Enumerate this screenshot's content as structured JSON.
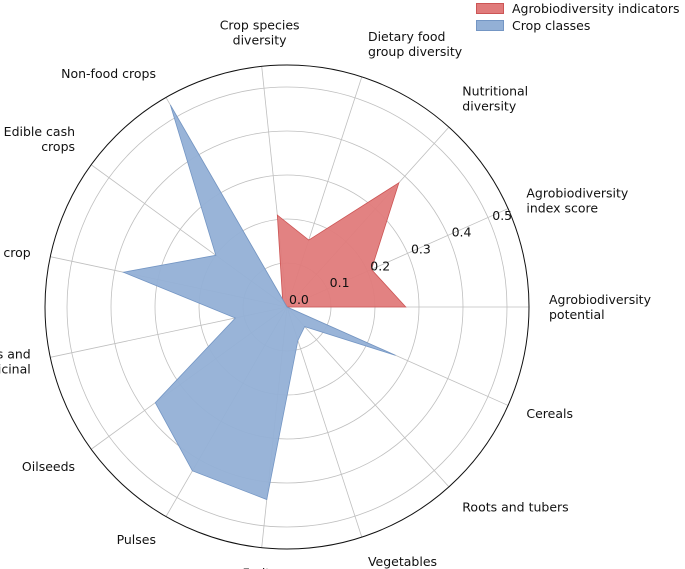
{
  "chart_data": {
    "type": "radar",
    "angle_order": "counter-clockwise from right",
    "r_max": 0.55,
    "r_ticks": [
      0.0,
      0.1,
      0.2,
      0.3,
      0.4,
      0.5
    ],
    "tick_labels": [
      "0.0",
      "0.1",
      "0.2",
      "0.3",
      "0.4",
      "0.5"
    ],
    "grid": true,
    "legend_placement": "top-right",
    "categories": [
      [
        "Agrobiodiversity",
        "potential"
      ],
      [
        "Agrobiodiversity",
        "index score"
      ],
      [
        "Nutritional",
        "diversity"
      ],
      [
        "Dietary food",
        "group diversity"
      ],
      [
        "Crop species",
        "diversity"
      ],
      [
        "Non-food crops"
      ],
      [
        "Edible cash",
        "crops"
      ],
      [
        "Sugar crop"
      ],
      [
        "Spices and",
        "medicinal"
      ],
      [
        "Oilseeds"
      ],
      [
        "Pulses"
      ],
      [
        "Fruits"
      ],
      [
        "Vegetables"
      ],
      [
        "Roots and tubers"
      ],
      [
        "Cereals"
      ]
    ],
    "series": [
      {
        "name": "Agrobiodiversity indicators",
        "color": "#e07b7b",
        "edge": "#cc5555",
        "values": [
          0.27,
          0.21,
          0.38,
          0.16,
          0.21,
          0.02,
          0.0,
          0.0,
          0.0,
          0.0,
          0.0,
          0.0,
          0.0,
          0.0,
          0.0
        ]
      },
      {
        "name": "Crop classes",
        "color": "#93b0d6",
        "edge": "#7496c4",
        "values": [
          0.0,
          0.0,
          0.0,
          0.0,
          0.0,
          0.53,
          0.2,
          0.38,
          0.12,
          0.37,
          0.43,
          0.44,
          0.08,
          0.06,
          0.27
        ]
      }
    ]
  }
}
